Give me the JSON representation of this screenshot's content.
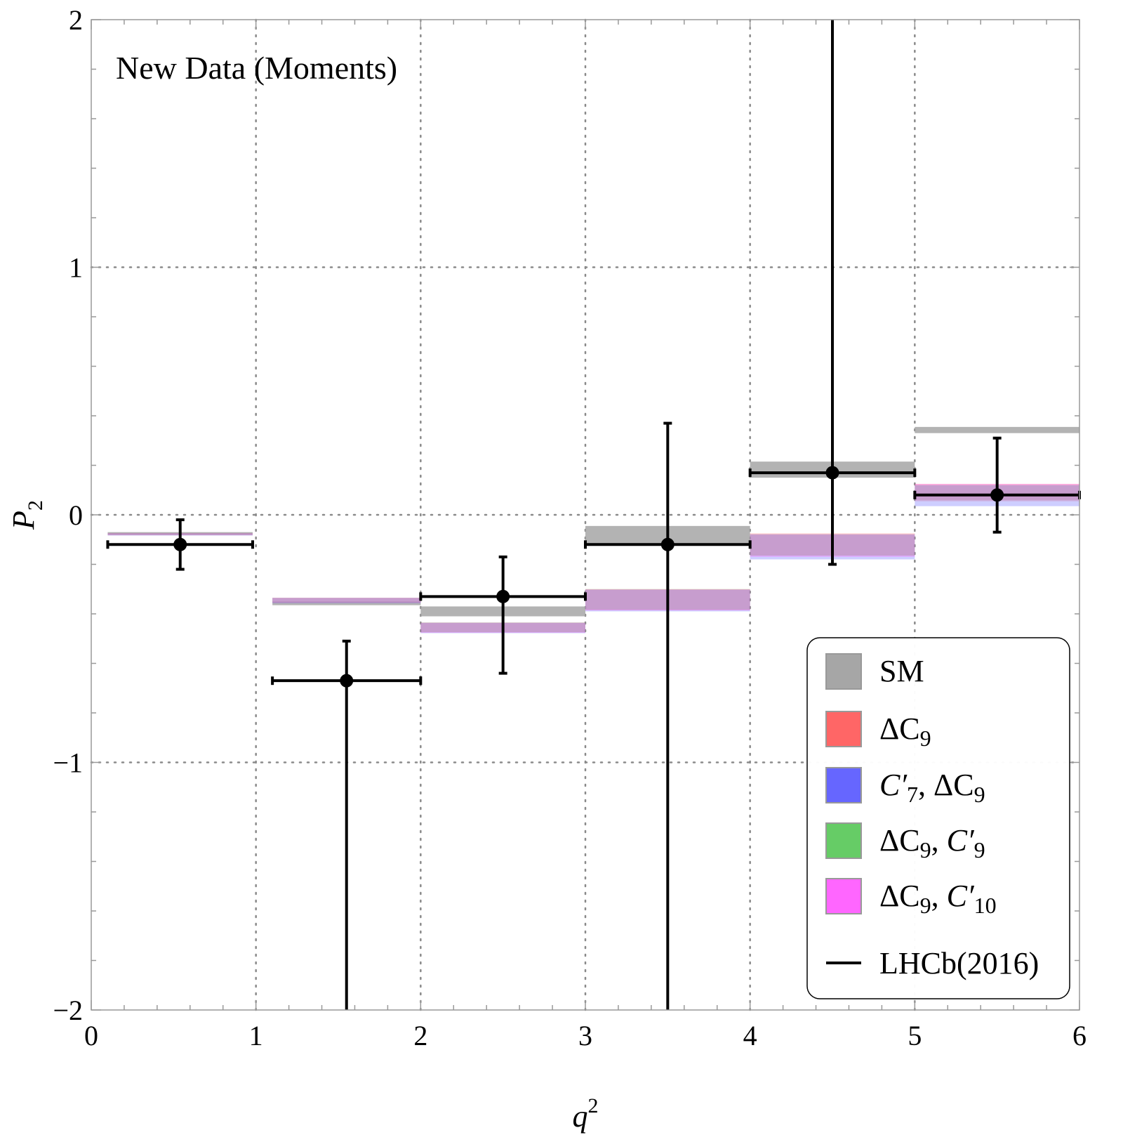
{
  "chart_data": {
    "type": "scatter",
    "title": "",
    "annotation": "New Data (Moments)",
    "xlabel": {
      "base": "q",
      "sup": "2"
    },
    "ylabel": {
      "base": "P",
      "sub": "2"
    },
    "xlim": [
      0,
      6
    ],
    "ylim": [
      -2,
      2
    ],
    "xticks": [
      0,
      1,
      2,
      3,
      4,
      5,
      6
    ],
    "yticks": [
      -2,
      -1,
      0,
      1,
      2
    ],
    "ytick_labels": [
      "−2",
      "−1",
      "0",
      "1",
      "2"
    ],
    "grid": "dotted at integer ticks",
    "legend_position": "bottom-right",
    "series": [
      {
        "name": "SM",
        "kind": "band",
        "color": "#a6a6a6",
        "bins": [
          {
            "x0": 0.1,
            "x1": 0.98,
            "y0": -0.075,
            "y1": -0.07
          },
          {
            "x0": 1.1,
            "x1": 2.0,
            "y0": -0.365,
            "y1": -0.35
          },
          {
            "x0": 2.0,
            "x1": 3.0,
            "y0": -0.41,
            "y1": -0.37
          },
          {
            "x0": 3.0,
            "x1": 4.0,
            "y0": -0.12,
            "y1": -0.045
          },
          {
            "x0": 4.0,
            "x1": 5.0,
            "y0": 0.15,
            "y1": 0.215
          },
          {
            "x0": 5.0,
            "x1": 6.0,
            "y0": 0.33,
            "y1": 0.355
          }
        ]
      },
      {
        "name": "ΔC9",
        "label_parts": [
          {
            "t": "ΔC",
            "i": false
          },
          {
            "t": "9",
            "i": false,
            "sub": true
          }
        ],
        "kind": "band",
        "color": "#ff6666",
        "bins": [
          {
            "x0": 0.1,
            "x1": 0.98,
            "y0": -0.082,
            "y1": -0.074
          },
          {
            "x0": 1.1,
            "x1": 2.0,
            "y0": -0.355,
            "y1": -0.335
          },
          {
            "x0": 2.0,
            "x1": 3.0,
            "y0": -0.475,
            "y1": -0.435
          },
          {
            "x0": 3.0,
            "x1": 4.0,
            "y0": -0.385,
            "y1": -0.3
          },
          {
            "x0": 4.0,
            "x1": 5.0,
            "y0": -0.165,
            "y1": -0.075
          },
          {
            "x0": 5.0,
            "x1": 6.0,
            "y0": 0.055,
            "y1": 0.125
          }
        ]
      },
      {
        "name": "C′7, ΔC9",
        "label_parts": [
          {
            "t": "C′",
            "i": true
          },
          {
            "t": "7",
            "i": false,
            "sub": true
          },
          {
            "t": ", ΔC",
            "i": false
          },
          {
            "t": "9",
            "i": false,
            "sub": true
          }
        ],
        "kind": "band",
        "color": "#6666ff",
        "bins": [
          {
            "x0": 0.1,
            "x1": 0.98,
            "y0": -0.083,
            "y1": -0.075
          },
          {
            "x0": 1.1,
            "x1": 2.0,
            "y0": -0.357,
            "y1": -0.336
          },
          {
            "x0": 2.0,
            "x1": 3.0,
            "y0": -0.478,
            "y1": -0.436
          },
          {
            "x0": 3.0,
            "x1": 4.0,
            "y0": -0.39,
            "y1": -0.303
          },
          {
            "x0": 4.0,
            "x1": 5.0,
            "y0": -0.18,
            "y1": -0.08
          },
          {
            "x0": 5.0,
            "x1": 6.0,
            "y0": 0.035,
            "y1": 0.12
          }
        ]
      },
      {
        "name": "ΔC9, C′9",
        "label_parts": [
          {
            "t": "ΔC",
            "i": false
          },
          {
            "t": "9",
            "i": false,
            "sub": true
          },
          {
            "t": ", ",
            "i": false
          },
          {
            "t": "C′",
            "i": true
          },
          {
            "t": "9",
            "i": false,
            "sub": true
          }
        ],
        "kind": "band",
        "color": "#66cc66",
        "bins": [
          {
            "x0": 0.1,
            "x1": 0.98,
            "y0": -0.081,
            "y1": -0.074
          },
          {
            "x0": 1.1,
            "x1": 2.0,
            "y0": -0.354,
            "y1": -0.335
          },
          {
            "x0": 2.0,
            "x1": 3.0,
            "y0": -0.474,
            "y1": -0.435
          },
          {
            "x0": 3.0,
            "x1": 4.0,
            "y0": -0.383,
            "y1": -0.3
          },
          {
            "x0": 4.0,
            "x1": 5.0,
            "y0": -0.165,
            "y1": -0.078
          },
          {
            "x0": 5.0,
            "x1": 6.0,
            "y0": 0.06,
            "y1": 0.12
          }
        ]
      },
      {
        "name": "ΔC9, C′10",
        "label_parts": [
          {
            "t": "ΔC",
            "i": false
          },
          {
            "t": "9",
            "i": false,
            "sub": true
          },
          {
            "t": ", ",
            "i": false
          },
          {
            "t": "C′",
            "i": true
          },
          {
            "t": "10",
            "i": false,
            "sub": true
          }
        ],
        "kind": "band",
        "color": "#ff66ff",
        "bins": [
          {
            "x0": 0.1,
            "x1": 0.98,
            "y0": -0.082,
            "y1": -0.074
          },
          {
            "x0": 1.1,
            "x1": 2.0,
            "y0": -0.355,
            "y1": -0.335
          },
          {
            "x0": 2.0,
            "x1": 3.0,
            "y0": -0.476,
            "y1": -0.436
          },
          {
            "x0": 3.0,
            "x1": 4.0,
            "y0": -0.386,
            "y1": -0.301
          },
          {
            "x0": 4.0,
            "x1": 5.0,
            "y0": -0.17,
            "y1": -0.078
          },
          {
            "x0": 5.0,
            "x1": 6.0,
            "y0": 0.06,
            "y1": 0.125
          }
        ]
      },
      {
        "name": "LHCb(2016)",
        "kind": "errorbar",
        "color": "#000000",
        "points": [
          {
            "x": 0.54,
            "xlo": 0.1,
            "xhi": 0.98,
            "y": -0.12,
            "ylo": -0.22,
            "yhi": -0.02
          },
          {
            "x": 1.55,
            "xlo": 1.1,
            "xhi": 2.0,
            "y": -0.67,
            "ylo": -2.0,
            "yhi": -0.51
          },
          {
            "x": 2.5,
            "xlo": 2.0,
            "xhi": 3.0,
            "y": -0.33,
            "ylo": -0.64,
            "yhi": -0.17
          },
          {
            "x": 3.5,
            "xlo": 3.0,
            "xhi": 4.0,
            "y": -0.12,
            "ylo": -2.0,
            "yhi": 0.37
          },
          {
            "x": 4.5,
            "xlo": 4.0,
            "xhi": 5.0,
            "y": 0.17,
            "ylo": -0.2,
            "yhi": 2.0
          },
          {
            "x": 5.5,
            "xlo": 5.0,
            "xhi": 6.0,
            "y": 0.08,
            "ylo": -0.07,
            "yhi": 0.31
          }
        ]
      }
    ]
  }
}
